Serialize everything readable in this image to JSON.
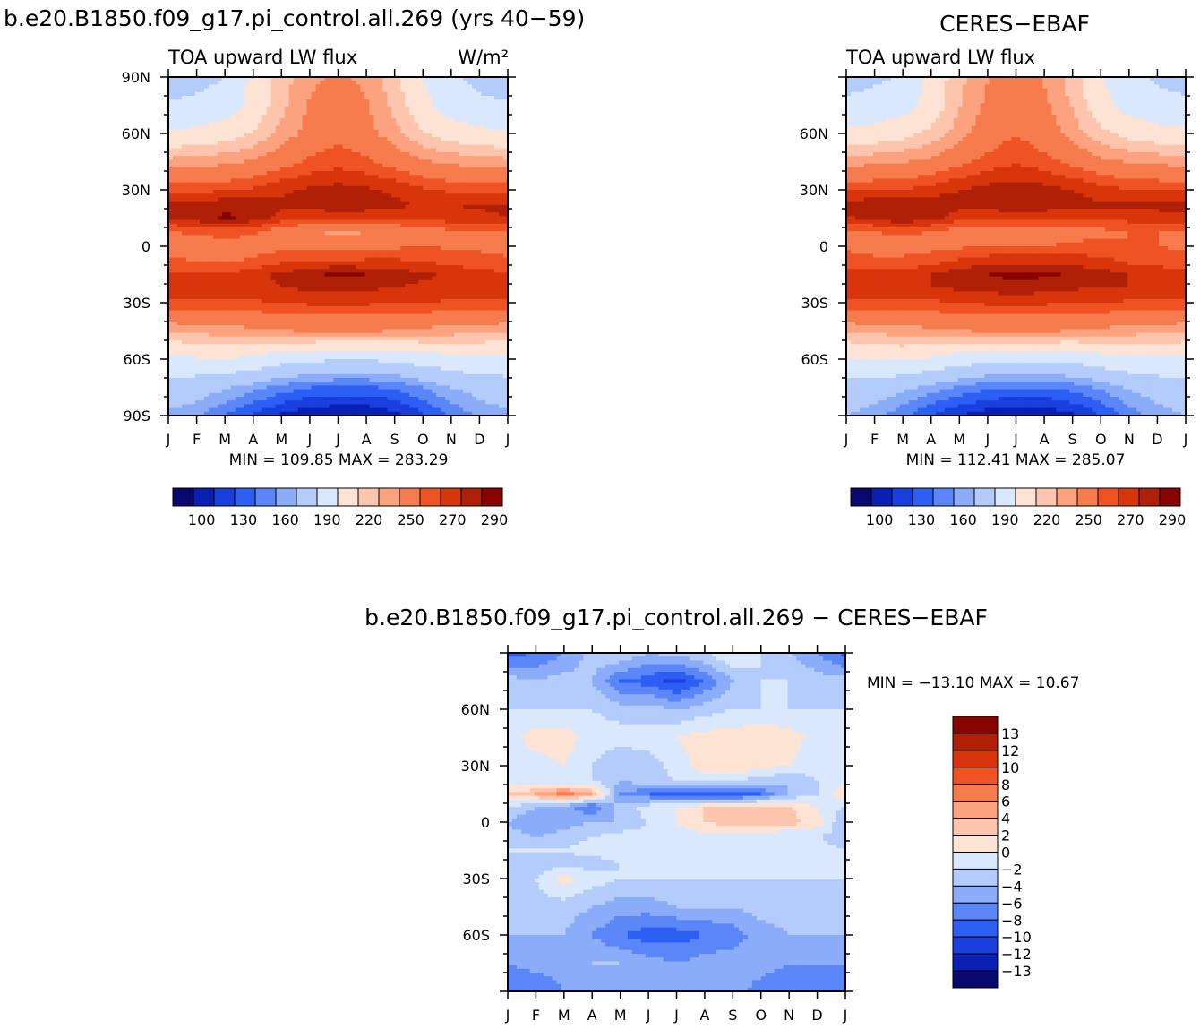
{
  "figure": {
    "model_title": "b.e20.B1850.f09_g17.pi_control.all.269 (yrs 40−59)",
    "obs_title": "CERES−EBAF",
    "diff_title": "b.e20.B1850.f09_g17.pi_control.all.269  −  CERES−EBAF"
  },
  "palette_abs": [
    "#08086e",
    "#0a1fb4",
    "#1a3fdf",
    "#2d5ff5",
    "#5a86f7",
    "#8aacf9",
    "#b4ccfc",
    "#d9e8fd",
    "#fde3d4",
    "#fdc5ad",
    "#fca27f",
    "#f67b4d",
    "#ef5323",
    "#d9350b",
    "#b02006",
    "#880400"
  ],
  "palette_diff": [
    "#08086e",
    "#0a1fb4",
    "#1a3fdf",
    "#2d5ff5",
    "#5a86f7",
    "#8aacf9",
    "#b4ccfc",
    "#d9e8fd",
    "#fde3d4",
    "#fdc5ad",
    "#fca27f",
    "#f67b4d",
    "#ef5323",
    "#d9350b",
    "#b02006",
    "#880400"
  ],
  "chart_data": [
    {
      "type": "heatmap",
      "title": "b.e20.B1850.f09_g17.pi_control.all.269 (yrs 40−59)",
      "left_label": "TOA upward LW flux",
      "units": "W/m²",
      "x_tick_labels": [
        "J",
        "F",
        "M",
        "A",
        "M",
        "J",
        "J",
        "A",
        "S",
        "O",
        "N",
        "D",
        "J"
      ],
      "y_tick_labels": [
        "90N",
        "60N",
        "30N",
        "0",
        "30S",
        "60S",
        "90S"
      ],
      "y_tick_values": [
        90,
        60,
        30,
        0,
        -30,
        -60,
        -90
      ],
      "ylim": [
        -90,
        90
      ],
      "min_max_text": "MIN = 109.85 MAX = 283.29",
      "colorbar_labels": [
        "100",
        "130",
        "160",
        "190",
        "220",
        "250",
        "270",
        "290"
      ],
      "colorbar_levels": [
        100,
        110,
        120,
        130,
        140,
        150,
        160,
        170,
        180,
        190,
        200,
        210,
        220,
        230,
        240,
        250,
        260,
        270,
        280,
        290,
        300
      ],
      "lat": [
        90,
        75,
        60,
        45,
        30,
        22,
        15,
        8,
        0,
        -8,
        -15,
        -22,
        -30,
        -45,
        -60,
        -75,
        -90
      ],
      "months": [
        0,
        1,
        2,
        3,
        4,
        5,
        6,
        7,
        8,
        9,
        10,
        11,
        12
      ],
      "values": [
        [
          168,
          172,
          180,
          205,
          220,
          232,
          238,
          232,
          218,
          200,
          184,
          172,
          168
        ],
        [
          182,
          186,
          192,
          205,
          222,
          236,
          242,
          236,
          222,
          205,
          192,
          186,
          182
        ],
        [
          202,
          204,
          208,
          216,
          228,
          240,
          246,
          240,
          228,
          216,
          208,
          204,
          202
        ],
        [
          228,
          230,
          232,
          236,
          244,
          252,
          256,
          252,
          244,
          236,
          232,
          230,
          228
        ],
        [
          256,
          257,
          258,
          262,
          268,
          272,
          274,
          272,
          268,
          262,
          258,
          257,
          256
        ],
        [
          272,
          276,
          278,
          276,
          272,
          274,
          278,
          276,
          272,
          270,
          270,
          271,
          272
        ],
        [
          270,
          276,
          282,
          276,
          266,
          262,
          262,
          262,
          262,
          262,
          266,
          268,
          270
        ],
        [
          250,
          252,
          256,
          252,
          244,
          236,
          232,
          234,
          240,
          244,
          248,
          248,
          250
        ],
        [
          246,
          242,
          244,
          244,
          246,
          246,
          244,
          246,
          248,
          250,
          248,
          248,
          246
        ],
        [
          252,
          250,
          248,
          252,
          258,
          262,
          262,
          262,
          262,
          260,
          256,
          254,
          252
        ],
        [
          262,
          262,
          262,
          266,
          272,
          278,
          282,
          280,
          276,
          272,
          268,
          264,
          262
        ],
        [
          266,
          266,
          266,
          268,
          270,
          272,
          274,
          272,
          270,
          268,
          268,
          266,
          266
        ],
        [
          258,
          258,
          258,
          258,
          260,
          262,
          262,
          262,
          260,
          260,
          258,
          258,
          258
        ],
        [
          226,
          228,
          230,
          232,
          234,
          236,
          236,
          236,
          234,
          232,
          230,
          228,
          226
        ],
        [
          196,
          198,
          200,
          196,
          188,
          184,
          182,
          182,
          184,
          190,
          194,
          196,
          196
        ],
        [
          170,
          168,
          162,
          154,
          146,
          140,
          138,
          138,
          142,
          150,
          160,
          166,
          170
        ],
        [
          158,
          152,
          140,
          128,
          118,
          112,
          110,
          110,
          116,
          128,
          142,
          152,
          158
        ]
      ]
    },
    {
      "type": "heatmap",
      "title": "CERES−EBAF",
      "left_label": "TOA upward LW flux",
      "x_tick_labels": [
        "J",
        "F",
        "M",
        "A",
        "M",
        "J",
        "J",
        "A",
        "S",
        "O",
        "N",
        "D",
        "J"
      ],
      "y_tick_labels": [
        "60N",
        "30N",
        "0",
        "30S",
        "60S"
      ],
      "y_tick_values": [
        60,
        30,
        0,
        -30,
        -60
      ],
      "ylim": [
        -90,
        90
      ],
      "min_max_text": "MIN = 112.41 MAX = 285.07",
      "colorbar_labels": [
        "100",
        "130",
        "160",
        "190",
        "220",
        "250",
        "270",
        "290"
      ],
      "colorbar_levels": [
        100,
        110,
        120,
        130,
        140,
        150,
        160,
        170,
        180,
        190,
        200,
        210,
        220,
        230,
        240,
        250,
        260,
        270,
        280,
        290,
        300
      ],
      "lat": [
        90,
        75,
        60,
        45,
        30,
        22,
        15,
        8,
        0,
        -8,
        -15,
        -22,
        -30,
        -45,
        -60,
        -75,
        -90
      ],
      "months": [
        0,
        1,
        2,
        3,
        4,
        5,
        6,
        7,
        8,
        9,
        10,
        11,
        12
      ],
      "values": [
        [
          172,
          176,
          182,
          206,
          222,
          234,
          240,
          234,
          220,
          202,
          186,
          176,
          172
        ],
        [
          184,
          188,
          194,
          206,
          224,
          238,
          246,
          238,
          224,
          206,
          194,
          188,
          184
        ],
        [
          204,
          206,
          210,
          218,
          230,
          242,
          250,
          242,
          230,
          218,
          210,
          206,
          204
        ],
        [
          230,
          232,
          234,
          238,
          246,
          254,
          258,
          254,
          246,
          238,
          234,
          232,
          230
        ],
        [
          258,
          259,
          260,
          264,
          270,
          274,
          276,
          274,
          270,
          264,
          260,
          259,
          258
        ],
        [
          274,
          278,
          280,
          278,
          274,
          276,
          280,
          278,
          274,
          272,
          272,
          273,
          274
        ],
        [
          268,
          274,
          280,
          274,
          264,
          260,
          260,
          260,
          260,
          260,
          264,
          266,
          268
        ],
        [
          250,
          250,
          252,
          250,
          246,
          244,
          244,
          244,
          246,
          248,
          250,
          250,
          250
        ],
        [
          248,
          246,
          246,
          246,
          248,
          250,
          250,
          250,
          252,
          252,
          250,
          250,
          248
        ],
        [
          254,
          252,
          252,
          256,
          262,
          266,
          266,
          266,
          266,
          264,
          258,
          256,
          254
        ],
        [
          264,
          264,
          266,
          270,
          276,
          280,
          284,
          282,
          278,
          274,
          270,
          266,
          264
        ],
        [
          268,
          268,
          268,
          270,
          272,
          274,
          276,
          274,
          272,
          270,
          270,
          268,
          268
        ],
        [
          258,
          258,
          258,
          258,
          260,
          262,
          262,
          262,
          260,
          260,
          258,
          258,
          258
        ],
        [
          226,
          228,
          230,
          232,
          234,
          236,
          236,
          236,
          234,
          232,
          230,
          228,
          226
        ],
        [
          198,
          200,
          202,
          198,
          190,
          186,
          184,
          184,
          186,
          192,
          196,
          198,
          198
        ],
        [
          172,
          170,
          164,
          156,
          148,
          142,
          140,
          140,
          144,
          152,
          162,
          168,
          172
        ],
        [
          160,
          154,
          142,
          130,
          120,
          114,
          112,
          112,
          118,
          130,
          144,
          154,
          160
        ]
      ]
    },
    {
      "type": "heatmap",
      "title": "b.e20.B1850.f09_g17.pi_control.all.269  −  CERES−EBAF",
      "x_tick_labels": [
        "J",
        "F",
        "M",
        "A",
        "M",
        "J",
        "J",
        "A",
        "S",
        "O",
        "N",
        "D",
        "J"
      ],
      "y_tick_labels": [
        "60N",
        "30N",
        "0",
        "30S",
        "60S"
      ],
      "y_tick_values": [
        60,
        30,
        0,
        -30,
        -60
      ],
      "ylim": [
        -90,
        90
      ],
      "min_max_text": "MIN = −13.10 MAX =   10.67",
      "colorbar_labels": [
        "13",
        "12",
        "10",
        "8",
        "6",
        "4",
        "2",
        "0",
        "−2",
        "−4",
        "−6",
        "−8",
        "−10",
        "−12",
        "−13"
      ],
      "colorbar_levels": [
        -14,
        -13,
        -12,
        -10,
        -8,
        -6,
        -4,
        -2,
        0,
        2,
        4,
        6,
        8,
        10,
        12,
        13,
        14
      ],
      "lat": [
        90,
        75,
        60,
        45,
        30,
        22,
        15,
        8,
        0,
        -8,
        -15,
        -22,
        -30,
        -45,
        -60,
        -75,
        -90
      ],
      "months": [
        0,
        1,
        2,
        3,
        4,
        5,
        6,
        7,
        8,
        9,
        10,
        11,
        12
      ],
      "values": [
        [
          -9,
          -8,
          -6,
          -3,
          -2,
          -4,
          -3,
          -2,
          0,
          -2,
          -4,
          -6,
          -9
        ],
        [
          -3,
          -4,
          -3,
          -4,
          -8,
          -9,
          -11,
          -8,
          -4,
          -2,
          -2,
          -3,
          -3
        ],
        [
          -2,
          -2,
          -2,
          -2,
          -3,
          -3,
          -4,
          -3,
          -2,
          -2,
          -2,
          -2,
          -2
        ],
        [
          -1,
          1,
          1,
          -1,
          -1,
          -1,
          0,
          1,
          1,
          2,
          1,
          -1,
          -1
        ],
        [
          -1,
          -1,
          0,
          -2,
          -4,
          -3,
          -1,
          1,
          2,
          1,
          0,
          -1,
          -1
        ],
        [
          -1,
          -2,
          -2,
          -2,
          -4,
          -3,
          -2,
          -1,
          -2,
          -3,
          -4,
          -2,
          -1
        ],
        [
          2,
          4,
          7,
          4,
          -6,
          -8,
          -9,
          -10,
          -10,
          -8,
          -4,
          -2,
          2
        ],
        [
          -2,
          -4,
          -5,
          -8,
          -3,
          -1,
          0,
          2,
          2,
          3,
          2,
          0,
          -2
        ],
        [
          -4,
          -6,
          -5,
          -4,
          -4,
          -2,
          0,
          2,
          3,
          4,
          3,
          1,
          -4
        ],
        [
          -3,
          -4,
          -3,
          -2,
          -1,
          -1,
          -1,
          -1,
          -1,
          -2,
          -2,
          -2,
          -3
        ],
        [
          -2,
          -2,
          -2,
          -1,
          -1,
          -1,
          -1,
          -1,
          -1,
          -1,
          -1,
          -1,
          -2
        ],
        [
          -2,
          -3,
          -3,
          -3,
          -2,
          -2,
          -2,
          -2,
          -2,
          -2,
          -2,
          -2,
          -2
        ],
        [
          -2,
          -2,
          1,
          -1,
          -2,
          -2,
          -2,
          -2,
          -2,
          -2,
          -2,
          -2,
          -2
        ],
        [
          -3,
          -3,
          -3,
          -4,
          -5,
          -5,
          -4,
          -4,
          -4,
          -3,
          -3,
          -3,
          -3
        ],
        [
          -4,
          -4,
          -4,
          -6,
          -8,
          -9,
          -9,
          -8,
          -7,
          -5,
          -4,
          -4,
          -4
        ],
        [
          -6,
          -5,
          -5,
          -4,
          -4,
          -5,
          -6,
          -5,
          -5,
          -5,
          -6,
          -6,
          -6
        ],
        [
          -8,
          -8,
          -6,
          -5,
          -4,
          -4,
          -5,
          -5,
          -5,
          -7,
          -8,
          -8,
          -8
        ]
      ]
    }
  ]
}
